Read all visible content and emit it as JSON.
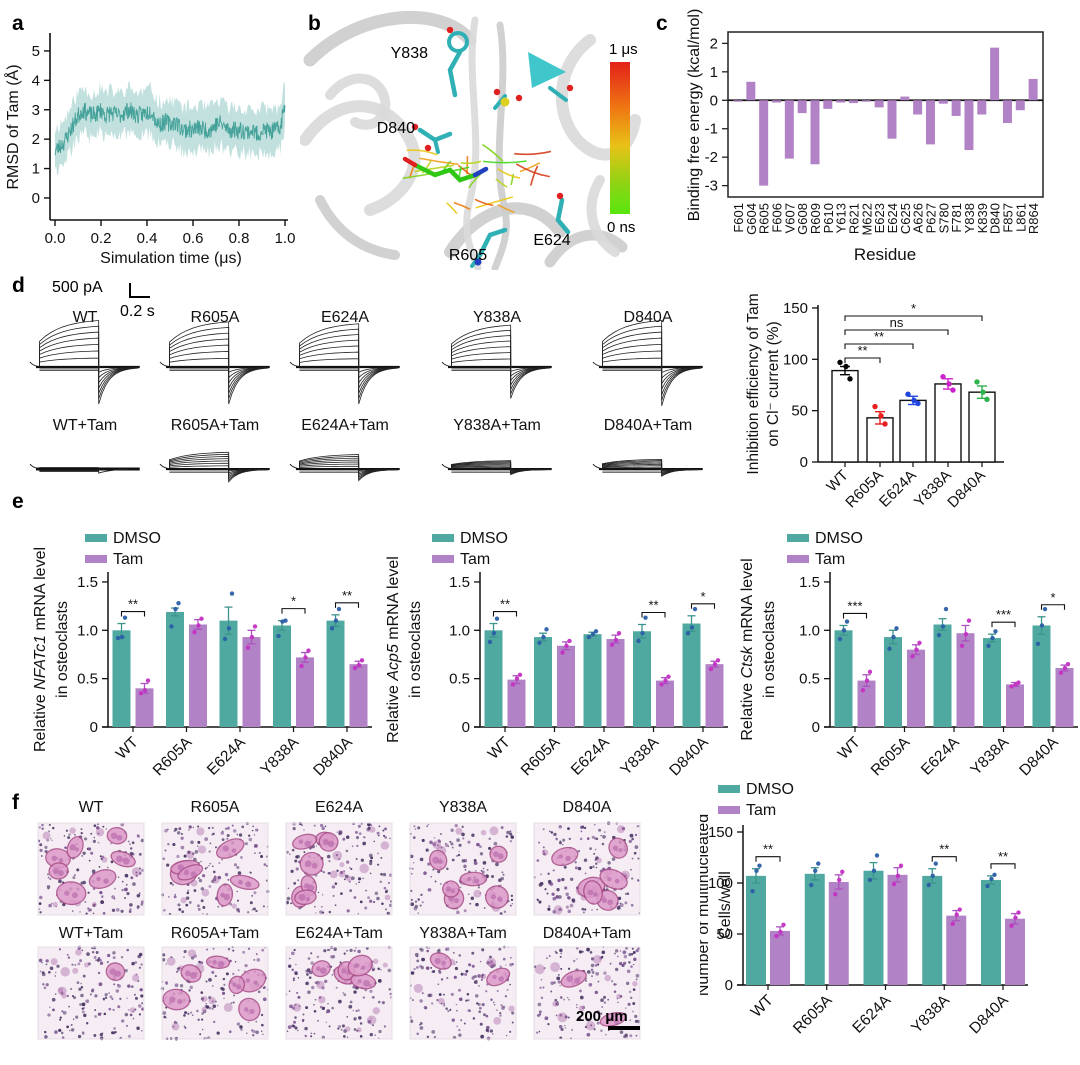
{
  "panels": {
    "a": {
      "label": "a"
    },
    "b": {
      "label": "b",
      "residues": [
        "Y838",
        "D840",
        "R605",
        "E624"
      ],
      "colorbar": {
        "top": "1 μs",
        "bottom": "0 ns"
      }
    },
    "c": {
      "label": "c"
    },
    "d": {
      "label": "d",
      "scale_bar": {
        "amplitude": "500 pA",
        "time": "0.2 s"
      },
      "trace_rows": [
        {
          "labels": [
            "WT",
            "R605A",
            "E624A",
            "Y838A",
            "D840A"
          ],
          "amps": [
            1.0,
            0.97,
            0.93,
            0.9,
            1.0
          ],
          "tails": [
            1.0,
            1.0,
            1.0,
            0.85,
            1.05
          ]
        },
        {
          "labels": [
            "WT+Tam",
            "R605A+Tam",
            "E624A+Tam",
            "Y838A+Tam",
            "D840A+Tam"
          ],
          "amps": [
            0.05,
            0.52,
            0.45,
            0.26,
            0.3
          ],
          "tails": [
            0.06,
            0.5,
            0.45,
            0.22,
            0.28
          ]
        }
      ]
    },
    "e": {
      "label": "e"
    },
    "f": {
      "label": "f",
      "image_rows": [
        {
          "labels": [
            "WT",
            "R605A",
            "E624A",
            "Y838A",
            "D840A"
          ],
          "large_cells": [
            7,
            6,
            7,
            6,
            6
          ]
        },
        {
          "labels": [
            "WT+Tam",
            "R605A+Tam",
            "E624A+Tam",
            "Y838A+Tam",
            "D840A+Tam"
          ],
          "large_cells": [
            1,
            6,
            5,
            2,
            2
          ]
        }
      ],
      "scale_text": "200 μm"
    }
  },
  "colors": {
    "teal": "#4FA9A1",
    "purple": "#B282C6",
    "line_teal": "#3E9E96",
    "band_teal": "rgba(79,169,161,0.35)",
    "dmso_dot": "#2B5FA5",
    "tam_dot": "#C432C4",
    "dmso_err": "#3D948C",
    "tam_err": "#AC52C0",
    "cat_colors": [
      "#000000",
      "#E8201F",
      "#2146E0",
      "#CC22CC",
      "#2EB34B"
    ]
  },
  "chart_data": [
    {
      "id": "rmsd",
      "type": "line",
      "xlabel": "Simulation time (μs)",
      "ylabel": "RMSD of Tam (Å)",
      "xlim": [
        0,
        1
      ],
      "ylim": [
        0,
        5
      ],
      "xticks": [
        "0.0",
        "0.2",
        "0.4",
        "0.6",
        "0.8",
        "1.0"
      ],
      "yticks": [
        0,
        1,
        2,
        3,
        4,
        5
      ],
      "x": [
        0,
        0.02,
        0.04,
        0.06,
        0.08,
        0.1,
        0.12,
        0.14,
        0.16,
        0.18,
        0.2,
        0.22,
        0.24,
        0.26,
        0.28,
        0.3,
        0.32,
        0.34,
        0.36,
        0.38,
        0.4,
        0.42,
        0.44,
        0.46,
        0.48,
        0.5,
        0.52,
        0.54,
        0.56,
        0.58,
        0.6,
        0.62,
        0.64,
        0.66,
        0.68,
        0.7,
        0.72,
        0.74,
        0.76,
        0.78,
        0.8,
        0.82,
        0.84,
        0.86,
        0.88,
        0.9,
        0.92,
        0.94,
        0.96,
        0.98,
        1.0
      ],
      "y": [
        1.6,
        1.75,
        1.9,
        2.2,
        2.5,
        2.8,
        3.0,
        2.9,
        2.8,
        2.85,
        3.0,
        2.8,
        2.9,
        2.85,
        2.8,
        2.9,
        3.0,
        2.9,
        2.8,
        2.85,
        2.9,
        3.0,
        2.6,
        2.5,
        2.6,
        2.5,
        2.6,
        2.45,
        2.3,
        2.35,
        2.3,
        2.4,
        2.35,
        2.3,
        2.35,
        2.5,
        2.55,
        2.4,
        2.3,
        2.35,
        2.3,
        2.3,
        2.25,
        2.3,
        2.15,
        2.3,
        2.3,
        2.25,
        2.3,
        2.4,
        3.2
      ],
      "band_halfwidth": 0.75
    },
    {
      "id": "binding_energy",
      "type": "bar",
      "xlabel": "Residue",
      "ylabel": "Binding free energy (kcal/mol)",
      "ylim": [
        -3.4,
        2.4
      ],
      "yticks": [
        -3,
        -2,
        -1,
        0,
        1,
        2
      ],
      "categories": [
        "F601",
        "G604",
        "R605",
        "F606",
        "V607",
        "G608",
        "R609",
        "P610",
        "Y613",
        "R621",
        "M622",
        "E623",
        "E624",
        "C625",
        "A626",
        "P627",
        "S780",
        "F781",
        "Y838",
        "K839",
        "D840",
        "F857",
        "L861",
        "R864"
      ],
      "values": [
        -0.05,
        0.65,
        -3.0,
        -0.08,
        -2.05,
        -0.45,
        -2.25,
        -0.3,
        -0.08,
        -0.1,
        -0.05,
        -0.25,
        -1.35,
        0.13,
        -0.5,
        -1.55,
        -0.12,
        -0.55,
        -1.75,
        -0.5,
        1.85,
        -0.8,
        -0.35,
        0.75
      ]
    },
    {
      "id": "inhibition",
      "type": "scatter_bar",
      "ylabel_lines": [
        "Inhibition efficiency of Tam",
        "on Cl⁻ current (%)"
      ],
      "ylim": [
        0,
        150
      ],
      "yticks": [
        0,
        50,
        100,
        150
      ],
      "categories": [
        "WT",
        "R605A",
        "E624A",
        "Y838A",
        "D840A"
      ],
      "values": [
        89,
        43,
        60,
        76,
        68
      ],
      "errors": [
        4,
        6,
        4,
        5,
        6
      ],
      "dots": [
        [
          97,
          93,
          81
        ],
        [
          54,
          45,
          37
        ],
        [
          66,
          60,
          57
        ],
        [
          83,
          76,
          70
        ],
        [
          78,
          68,
          61
        ]
      ],
      "significance": [
        {
          "to": 1,
          "label": "**"
        },
        {
          "to": 2,
          "label": "**"
        },
        {
          "to": 3,
          "label": "ns"
        },
        {
          "to": 4,
          "label": "*"
        }
      ]
    },
    {
      "id": "nfatc1",
      "type": "grouped_bar",
      "ylabel_pre": "Relative ",
      "gene": "NFATc1",
      "ylabel_post": " mRNA level",
      "ylabel_line2": "in osteoclasts",
      "legend": [
        "DMSO",
        "Tam"
      ],
      "ylim": [
        0,
        1.5
      ],
      "yticks": [
        "0",
        "0.5",
        "1.0",
        "1.5"
      ],
      "categories": [
        "WT",
        "R605A",
        "E624A",
        "Y838A",
        "D840A"
      ],
      "dmso": {
        "values": [
          1.0,
          1.19,
          1.1,
          1.05,
          1.1
        ],
        "errors": [
          0.07,
          0.04,
          0.14,
          0.05,
          0.06
        ],
        "dots": [
          [
            0.92,
            0.93,
            1.13
          ],
          [
            1.04,
            1.22,
            1.28
          ],
          [
            0.91,
            1.02,
            1.38
          ],
          [
            0.94,
            1.09,
            1.1
          ],
          [
            1.02,
            1.1,
            1.22
          ]
        ]
      },
      "tam": {
        "values": [
          0.4,
          1.06,
          0.93,
          0.72,
          0.65
        ],
        "errors": [
          0.05,
          0.05,
          0.07,
          0.05,
          0.03
        ],
        "dots": [
          [
            0.35,
            0.38,
            0.48
          ],
          [
            0.98,
            1.05,
            1.12
          ],
          [
            0.82,
            0.93,
            1.04
          ],
          [
            0.63,
            0.72,
            0.79
          ],
          [
            0.61,
            0.64,
            0.69
          ]
        ]
      },
      "significance": [
        {
          "g": 0,
          "label": "**"
        },
        {
          "g": 3,
          "label": "*"
        },
        {
          "g": 4,
          "label": "**"
        }
      ]
    },
    {
      "id": "acp5",
      "type": "grouped_bar",
      "ylabel_pre": "Relative ",
      "gene": "Acp5",
      "ylabel_post": " mRNA level",
      "ylabel_line2": "in osteoclasts",
      "legend": [
        "DMSO",
        "Tam"
      ],
      "ylim": [
        0,
        1.5
      ],
      "yticks": [
        "0",
        "0.5",
        "1.0",
        "1.5"
      ],
      "categories": [
        "WT",
        "R605A",
        "E624A",
        "Y838A",
        "D840A"
      ],
      "dmso": {
        "values": [
          1.0,
          0.93,
          0.96,
          0.99,
          1.07
        ],
        "errors": [
          0.07,
          0.04,
          0.02,
          0.07,
          0.08
        ],
        "dots": [
          [
            0.88,
            0.97,
            1.12
          ],
          [
            0.87,
            0.93,
            1.01
          ],
          [
            0.93,
            0.96,
            0.99
          ],
          [
            0.89,
            0.97,
            1.13
          ],
          [
            0.97,
            1.03,
            1.22
          ]
        ]
      },
      "tam": {
        "values": [
          0.49,
          0.84,
          0.91,
          0.48,
          0.65
        ],
        "errors": [
          0.04,
          0.04,
          0.04,
          0.03,
          0.03
        ],
        "dots": [
          [
            0.44,
            0.5,
            0.54
          ],
          [
            0.77,
            0.84,
            0.89
          ],
          [
            0.85,
            0.9,
            0.97
          ],
          [
            0.44,
            0.48,
            0.52
          ],
          [
            0.6,
            0.65,
            0.69
          ]
        ]
      },
      "significance": [
        {
          "g": 0,
          "label": "**"
        },
        {
          "g": 3,
          "label": "**"
        },
        {
          "g": 4,
          "label": "*"
        }
      ]
    },
    {
      "id": "ctsk",
      "type": "grouped_bar",
      "ylabel_pre": "Relative ",
      "gene": "Ctsk",
      "ylabel_post": " mRNA level",
      "ylabel_line2": "in osteoclasts",
      "legend": [
        "DMSO",
        "Tam"
      ],
      "ylim": [
        0,
        1.5
      ],
      "yticks": [
        "0",
        "0.5",
        "1.0",
        "1.5"
      ],
      "categories": [
        "WT",
        "R605A",
        "E624A",
        "Y838A",
        "D840A"
      ],
      "dmso": {
        "values": [
          1.0,
          0.93,
          1.06,
          0.92,
          1.05
        ],
        "errors": [
          0.05,
          0.07,
          0.06,
          0.04,
          0.09
        ],
        "dots": [
          [
            0.91,
            1.0,
            1.09
          ],
          [
            0.81,
            0.93,
            1.02
          ],
          [
            0.95,
            1.04,
            1.22
          ],
          [
            0.84,
            0.92,
            0.99
          ],
          [
            0.86,
            1.05,
            1.22
          ]
        ]
      },
      "tam": {
        "values": [
          0.48,
          0.8,
          0.97,
          0.44,
          0.61
        ],
        "errors": [
          0.06,
          0.05,
          0.08,
          0.02,
          0.03
        ],
        "dots": [
          [
            0.38,
            0.48,
            0.57
          ],
          [
            0.73,
            0.8,
            0.87
          ],
          [
            0.84,
            0.96,
            1.1
          ],
          [
            0.42,
            0.44,
            0.46
          ],
          [
            0.56,
            0.61,
            0.65
          ]
        ]
      },
      "significance": [
        {
          "g": 0,
          "label": "***"
        },
        {
          "g": 3,
          "label": "***"
        },
        {
          "g": 4,
          "label": "*"
        }
      ]
    },
    {
      "id": "multinucleated",
      "type": "grouped_bar",
      "ylabel_lines": [
        "Number of multinucleated",
        "Cells/well"
      ],
      "legend": [
        "DMSO",
        "Tam"
      ],
      "ylim": [
        0,
        150
      ],
      "yticks": [
        "0",
        "50",
        "100",
        "150"
      ],
      "categories": [
        "WT",
        "R605A",
        "E624A",
        "Y838A",
        "D840A"
      ],
      "dmso": {
        "values": [
          107,
          109,
          112,
          107,
          103
        ],
        "errors": [
          7,
          6,
          8,
          7,
          4
        ],
        "dots": [
          [
            92,
            112,
            117
          ],
          [
            98,
            112,
            119
          ],
          [
            103,
            112,
            127
          ],
          [
            98,
            107,
            119
          ],
          [
            97,
            104,
            108
          ]
        ]
      },
      "tam": {
        "values": [
          53,
          101,
          108,
          68,
          65
        ],
        "errors": [
          4,
          7,
          7,
          5,
          5
        ],
        "dots": [
          [
            48,
            52,
            59
          ],
          [
            89,
            103,
            111
          ],
          [
            99,
            107,
            117
          ],
          [
            60,
            69,
            74
          ],
          [
            58,
            66,
            71
          ]
        ]
      },
      "significance": [
        {
          "g": 0,
          "label": "**"
        },
        {
          "g": 3,
          "label": "**"
        },
        {
          "g": 4,
          "label": "**"
        }
      ]
    }
  ]
}
